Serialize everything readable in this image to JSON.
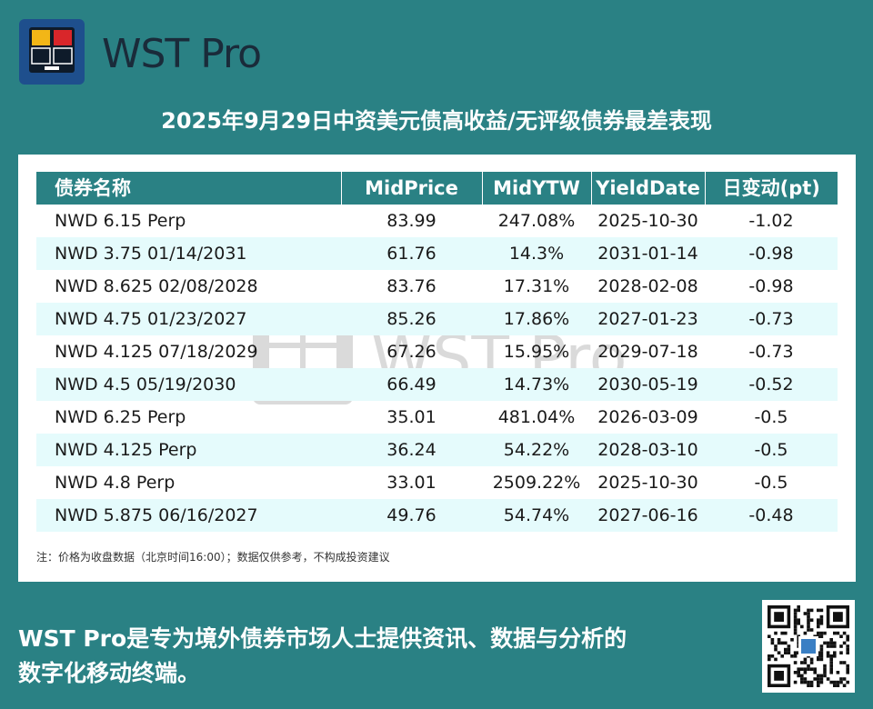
{
  "brand": {
    "name_prefix": "WST",
    "name_suffix": " Pro"
  },
  "title": "2025年9月29日中资美元债高收益/无评级债券最差表现",
  "table": {
    "headers": [
      "债券名称",
      "MidPrice",
      "MidYTW",
      "YieldDate",
      "日变动(pt)"
    ],
    "rows": [
      [
        "NWD 6.15 Perp",
        "83.99",
        "247.08%",
        "2025-10-30",
        "-1.02"
      ],
      [
        "NWD 3.75 01/14/2031",
        "61.76",
        "14.3%",
        "2031-01-14",
        "-0.98"
      ],
      [
        "NWD 8.625 02/08/2028",
        "83.76",
        "17.31%",
        "2028-02-08",
        "-0.98"
      ],
      [
        "NWD 4.75 01/23/2027",
        "85.26",
        "17.86%",
        "2027-01-23",
        "-0.73"
      ],
      [
        "NWD 4.125 07/18/2029",
        "67.26",
        "15.95%",
        "2029-07-18",
        "-0.73"
      ],
      [
        "NWD 4.5 05/19/2030",
        "66.49",
        "14.73%",
        "2030-05-19",
        "-0.52"
      ],
      [
        "NWD 6.25 Perp",
        "35.01",
        "481.04%",
        "2026-03-09",
        "-0.5"
      ],
      [
        "NWD 4.125 Perp",
        "36.24",
        "54.22%",
        "2028-03-10",
        "-0.5"
      ],
      [
        "NWD 4.8 Perp",
        "33.01",
        "2509.22%",
        "2025-10-30",
        "-0.5"
      ],
      [
        "NWD 5.875 06/16/2027",
        "49.76",
        "54.74%",
        "2027-06-16",
        "-0.48"
      ]
    ]
  },
  "note": "注：价格为收盘数据（北京时间16:00）；数据仅供参考，不构成投资建议",
  "footer": {
    "line1": "WST Pro是专为境外债券市场人士提供资讯、数据与分析的",
    "line2": "数字化移动终端。"
  },
  "colors": {
    "background": "#2a8184",
    "header_bg": "#2a8184",
    "alt_row": "#e5fbfc",
    "logo_bg": "#1e4f8d",
    "logo_yellow": "#f2b617",
    "logo_red": "#d9262a"
  },
  "icons": {
    "logo": "wst-logo-icon",
    "qr": "qr-code-icon",
    "watermark": "wst-watermark-logo"
  }
}
